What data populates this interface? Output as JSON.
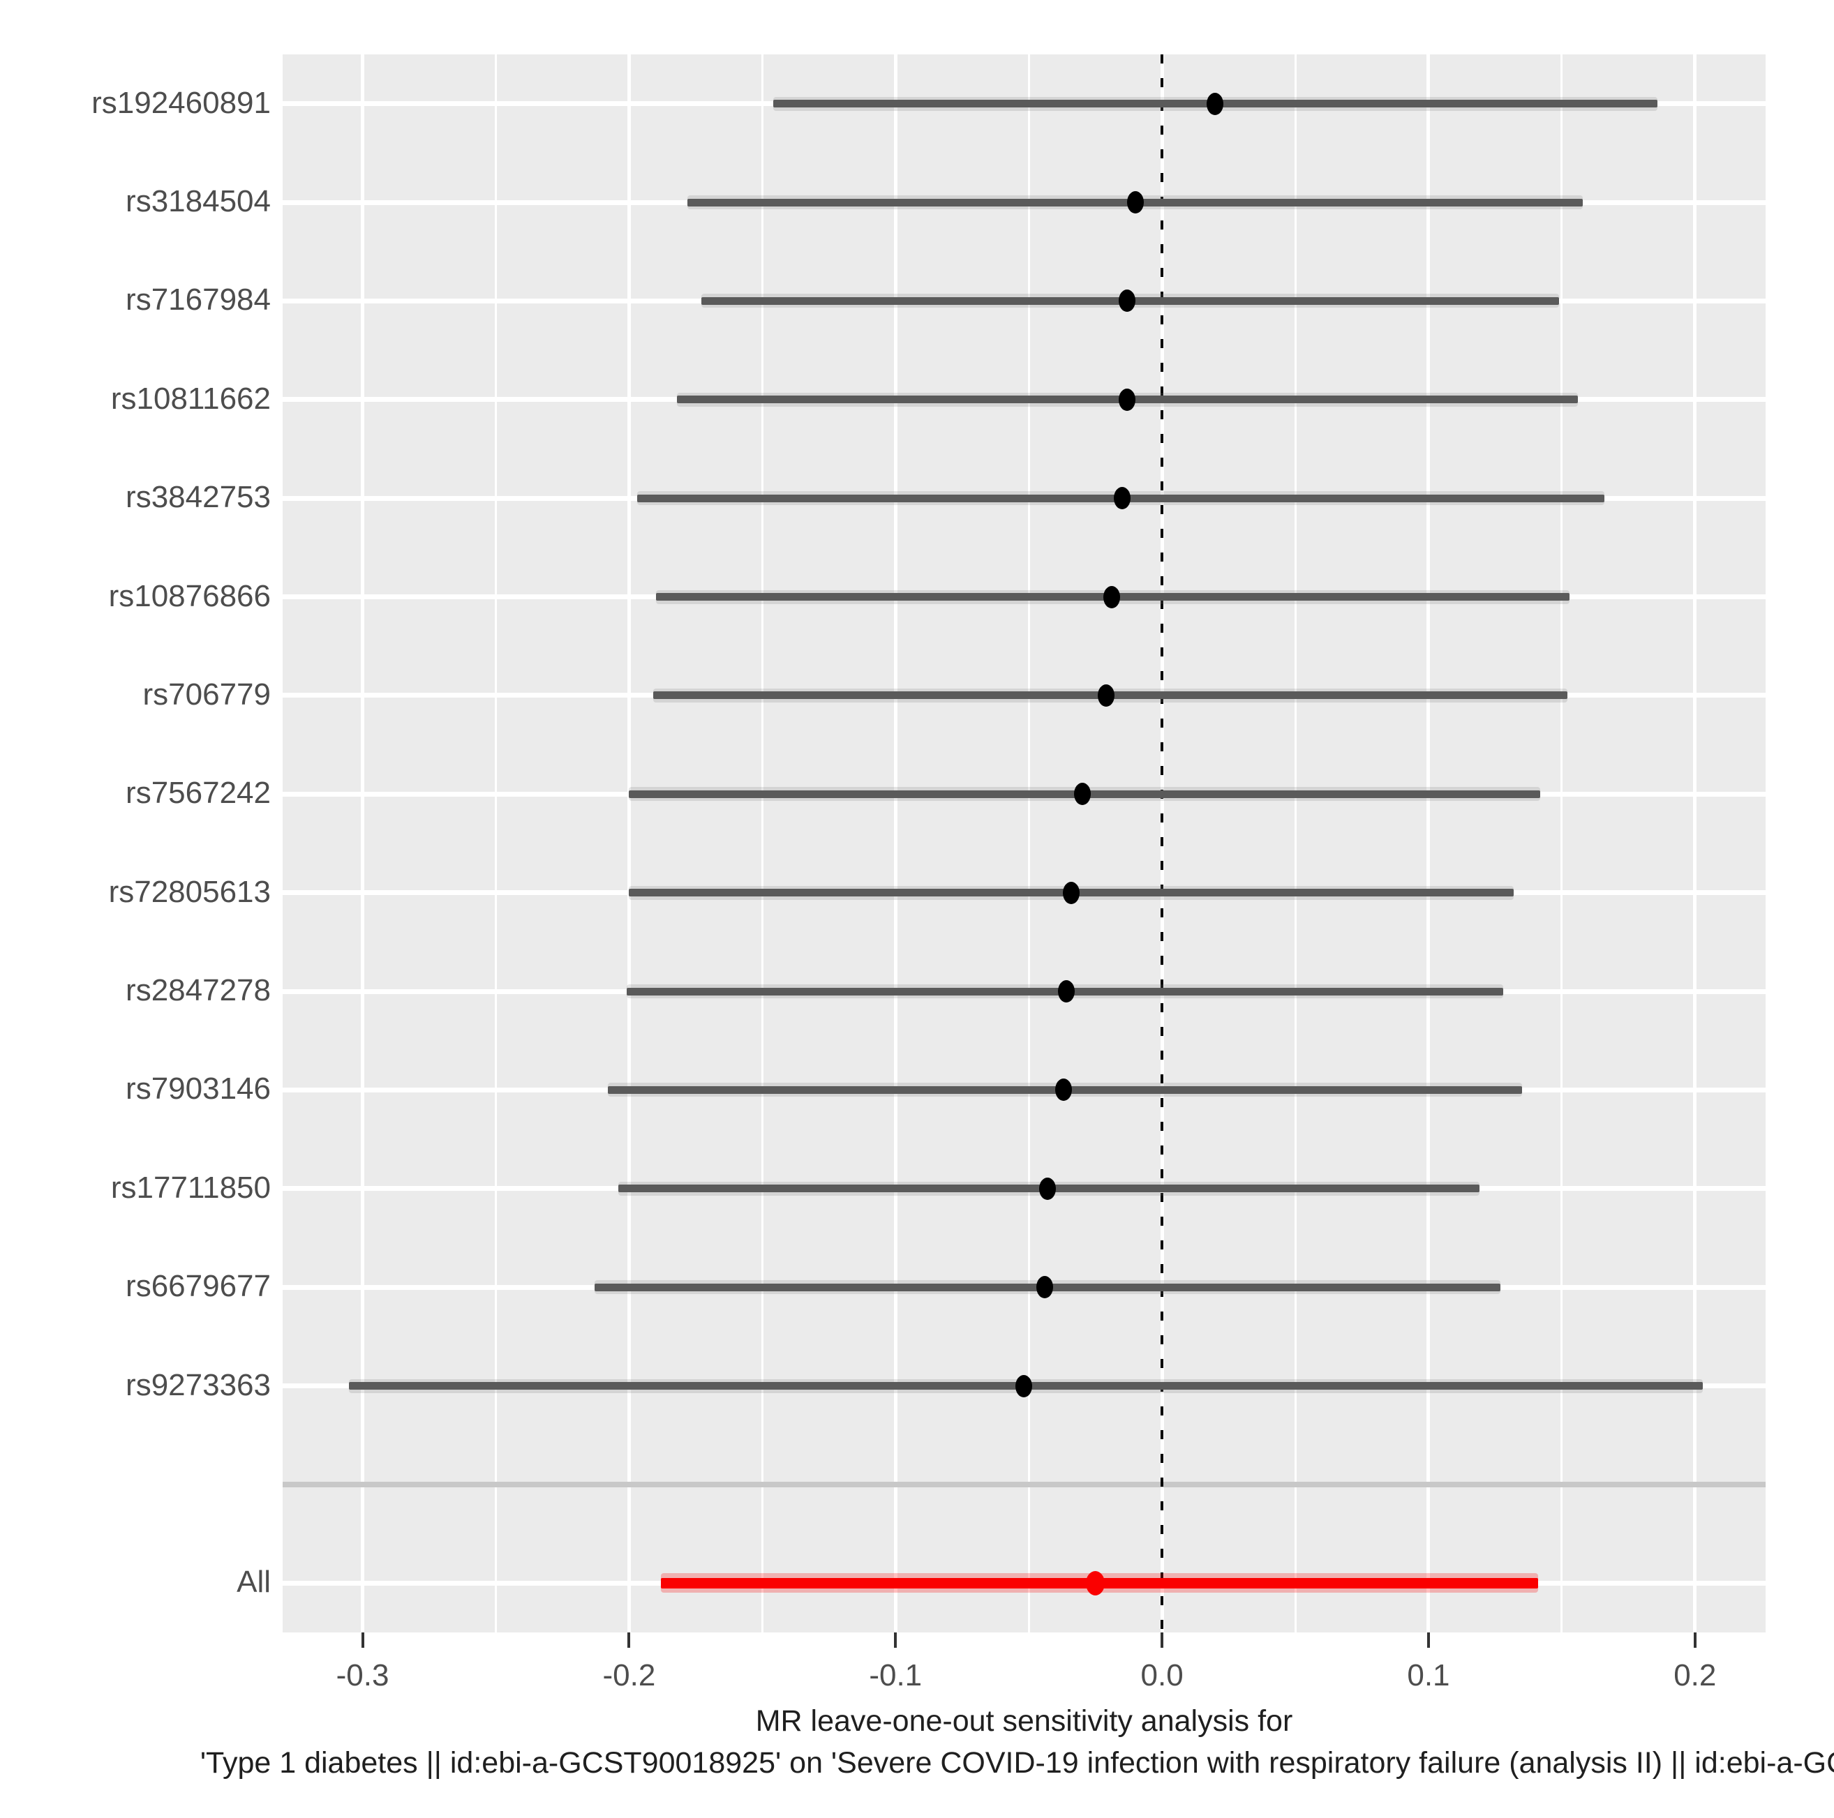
{
  "chart_data": {
    "type": "scatter",
    "subtype": "forest_leave_one_out",
    "title": "",
    "xlabel_lines": [
      "MR leave-one-out sensitivity analysis for",
      "'Type 1 diabetes || id:ebi-a-GCST90018925' on 'Severe COVID-19 infection with respiratory failure (analysis II) || id:ebi-a-GC"
    ],
    "ylabel": "",
    "xlim": [
      -0.33,
      0.2265
    ],
    "x_ticks": [
      -0.3,
      -0.2,
      -0.1,
      0.0,
      0.1,
      0.2
    ],
    "x_tick_labels": [
      "-0.3",
      "-0.2",
      "-0.1",
      "0.0",
      "0.1",
      "0.2"
    ],
    "x_minor_ticks": [
      -0.25,
      -0.15,
      -0.05,
      0.05,
      0.15
    ],
    "zero_line_x": 0,
    "grid": true,
    "legend": false,
    "rows": [
      {
        "label": "rs192460891",
        "estimate": 0.02,
        "lo": -0.146,
        "hi": 0.186
      },
      {
        "label": "rs3184504",
        "estimate": -0.01,
        "lo": -0.178,
        "hi": 0.158
      },
      {
        "label": "rs7167984",
        "estimate": -0.013,
        "lo": -0.173,
        "hi": 0.149
      },
      {
        "label": "rs10811662",
        "estimate": -0.013,
        "lo": -0.182,
        "hi": 0.156
      },
      {
        "label": "rs3842753",
        "estimate": -0.015,
        "lo": -0.197,
        "hi": 0.166
      },
      {
        "label": "rs10876866",
        "estimate": -0.019,
        "lo": -0.19,
        "hi": 0.153
      },
      {
        "label": "rs706779",
        "estimate": -0.021,
        "lo": -0.191,
        "hi": 0.152
      },
      {
        "label": "rs7567242",
        "estimate": -0.03,
        "lo": -0.2,
        "hi": 0.142
      },
      {
        "label": "rs72805613",
        "estimate": -0.034,
        "lo": -0.2,
        "hi": 0.132
      },
      {
        "label": "rs2847278",
        "estimate": -0.036,
        "lo": -0.201,
        "hi": 0.128
      },
      {
        "label": "rs7903146",
        "estimate": -0.037,
        "lo": -0.208,
        "hi": 0.135
      },
      {
        "label": "rs17711850",
        "estimate": -0.043,
        "lo": -0.204,
        "hi": 0.119
      },
      {
        "label": "rs6679677",
        "estimate": -0.044,
        "lo": -0.213,
        "hi": 0.127
      },
      {
        "label": "rs9273363",
        "estimate": -0.052,
        "lo": -0.305,
        "hi": 0.203
      }
    ],
    "all_row": {
      "label": "All",
      "estimate": -0.025,
      "lo": -0.188,
      "hi": 0.141
    },
    "colors": {
      "panel_bg": "#EBEBEB",
      "grid": "#FFFFFF",
      "ci_line": "#5A5A5A",
      "point": "#000000",
      "all_line": "#FA0000",
      "separator": "#C8C8C8",
      "tick_text": "#4D4D4D",
      "title_text": "#1F1F1F",
      "zero_line": "#000000"
    }
  }
}
